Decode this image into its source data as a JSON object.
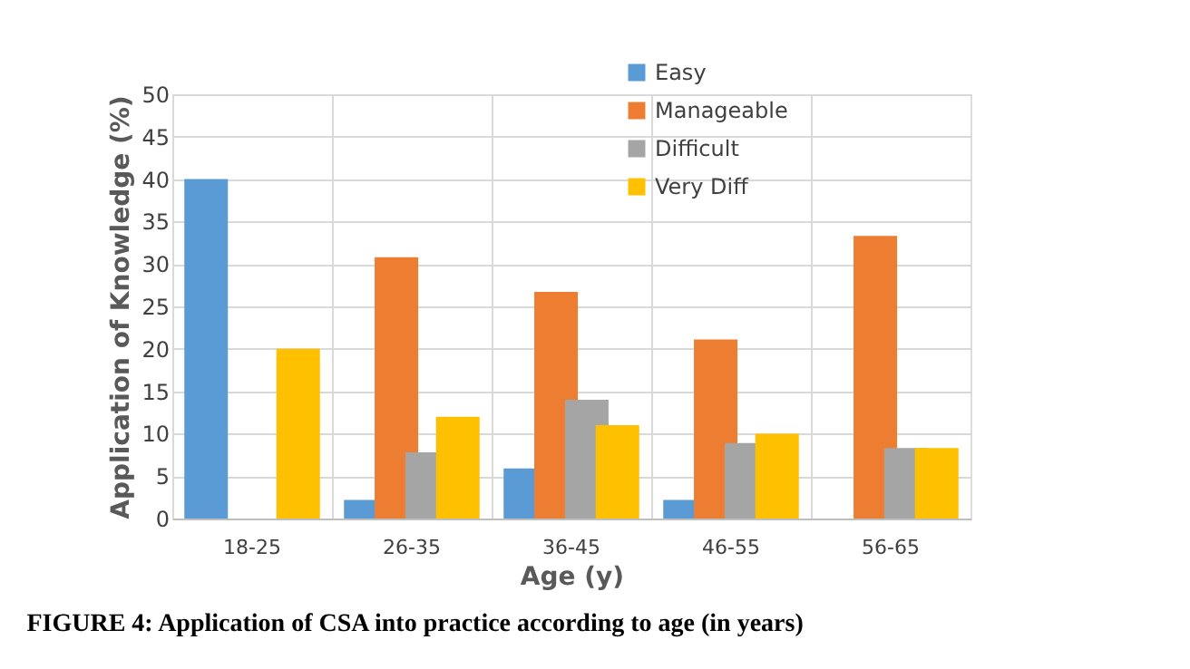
{
  "chart_data": {
    "type": "bar",
    "xlabel": "Age (y)",
    "ylabel": "Application of Knowledge (%)",
    "categories": [
      "18-25",
      "26-35",
      "36-45",
      "46-55",
      "56-65"
    ],
    "series": [
      {
        "name": "Easy",
        "color": "#5b9bd5",
        "values": [
          40,
          2.2,
          5.9,
          2.2,
          0
        ]
      },
      {
        "name": "Manageable",
        "color": "#ed7d31",
        "values": [
          0,
          30.8,
          26.7,
          21.1,
          33.3
        ]
      },
      {
        "name": "Difficult",
        "color": "#a5a5a5",
        "values": [
          0,
          7.8,
          14,
          8.9,
          8.3
        ]
      },
      {
        "name": "Very Diff",
        "color": "#ffc000",
        "values": [
          20,
          12,
          11,
          10,
          8.3
        ]
      }
    ],
    "ylim": [
      0,
      50
    ],
    "yticks": [
      0,
      5,
      10,
      15,
      20,
      25,
      30,
      35,
      40,
      45,
      50
    ],
    "grid": true,
    "legend": "top right",
    "annotations": [
      "FIGURE 4: Application of CSA into practice according to age (in years)"
    ]
  }
}
